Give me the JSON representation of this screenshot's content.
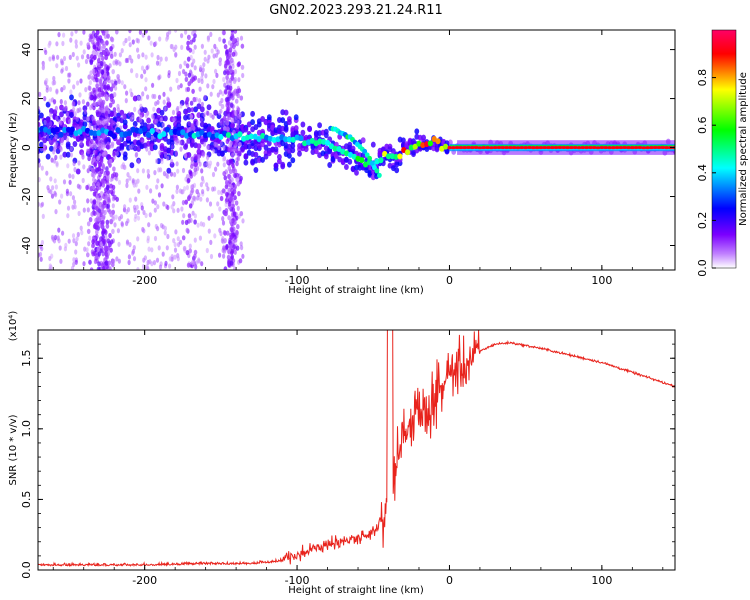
{
  "title": "GN02.2023.293.21.24.R11",
  "chart_data": [
    {
      "type": "heatmap",
      "name": "spectrogram",
      "xlabel": "Height of straight line (km)",
      "ylabel": "Frequency (Hz)",
      "xlim": [
        -270,
        148
      ],
      "ylim": [
        -50,
        48
      ],
      "xticks": [
        -200,
        -100,
        0,
        100
      ],
      "yticks": [
        -40,
        -20,
        0,
        20,
        40
      ],
      "colorbar": {
        "label": "Normalized spectral amplitude",
        "range": [
          0,
          1
        ],
        "ticks": [
          "0.0",
          "0.2",
          "0.4",
          "0.6",
          "0.8"
        ],
        "colormap": [
          "#ffffff",
          "#7b00ff",
          "#0000ff",
          "#00ffff",
          "#00ff00",
          "#ffff00",
          "#ff0000",
          "#ff00cc"
        ]
      },
      "ridge": {
        "x": [
          -270,
          -220,
          -180,
          -150,
          -120,
          -100,
          -80,
          -65,
          -50,
          -42,
          -35,
          -25,
          -10,
          0,
          148
        ],
        "y": [
          7,
          6,
          6,
          5,
          4,
          3,
          1,
          -3,
          -8,
          -3,
          -4,
          1,
          2,
          0,
          0
        ],
        "peak_amplitude": [
          0.35,
          0.35,
          0.4,
          0.45,
          0.5,
          0.5,
          0.55,
          0.6,
          0.65,
          0.7,
          0.8,
          0.85,
          0.95,
          1.0,
          1.0
        ]
      },
      "branch": {
        "x": [
          -78,
          -65,
          -55,
          -45
        ],
        "y": [
          8,
          4,
          -2,
          -12
        ]
      }
    },
    {
      "type": "line",
      "name": "snr",
      "xlabel": "Height of straight line (km)",
      "ylabel": "SNR (10 * v/v)",
      "multiplier": "(x10⁴)",
      "xlim": [
        -270,
        148
      ],
      "ylim": [
        0,
        1.7
      ],
      "xticks": [
        -200,
        -100,
        0,
        100
      ],
      "yticks": [
        "0.0",
        "0.5",
        "1.0",
        "1.5"
      ],
      "color": "#e8231c",
      "series": [
        {
          "x": [
            -270,
            -240,
            -200,
            -160,
            -130,
            -110,
            -95,
            -80,
            -65,
            -55,
            -48,
            -42,
            -40,
            -38,
            -34,
            -30,
            -25,
            -20,
            -15,
            -10,
            -5,
            0,
            10,
            20,
            30,
            40,
            60,
            80,
            100,
            120,
            148
          ],
          "y": [
            0.03,
            0.03,
            0.03,
            0.04,
            0.04,
            0.06,
            0.12,
            0.17,
            0.2,
            0.22,
            0.28,
            0.4,
            0.9,
            0.6,
            0.8,
            1.0,
            1.05,
            1.1,
            1.12,
            1.2,
            1.3,
            1.4,
            1.45,
            1.55,
            1.6,
            1.61,
            1.57,
            1.52,
            1.47,
            1.4,
            1.3
          ]
        }
      ]
    }
  ]
}
